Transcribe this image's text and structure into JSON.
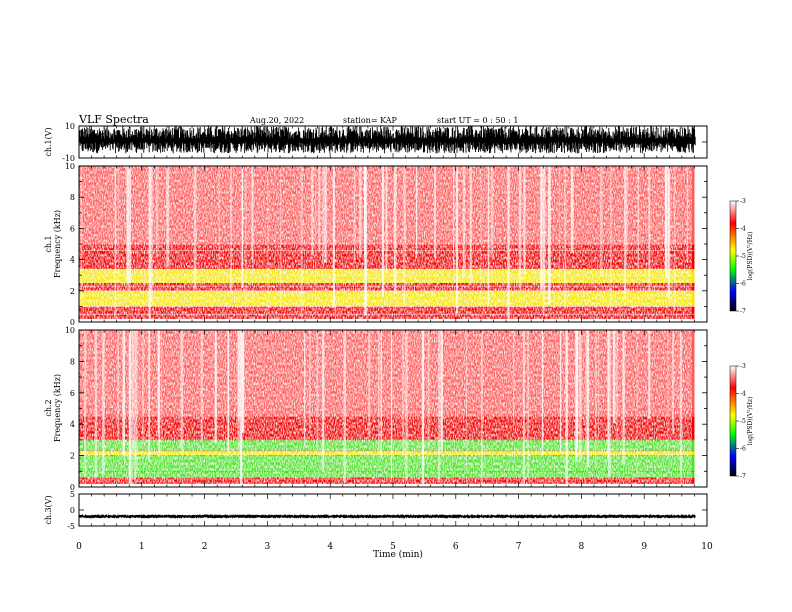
{
  "header": {
    "title": "VLF Spectra",
    "date": "Aug.20, 2022",
    "station": "station= KAP",
    "start": "start  UT =   0 : 50 : 1"
  },
  "colors": {
    "background": "#ffffff",
    "axis": "#000000",
    "spectrogram_base": "#ff0000",
    "colormap": [
      "#ffffff",
      "#ff0000",
      "#ffff00",
      "#00ff00",
      "#0000ff",
      "#000000"
    ]
  },
  "chart_data": [
    {
      "type": "line",
      "name": "waveform-ch1",
      "ylabel": "ch.1(V)",
      "ylim": [
        -10,
        10
      ],
      "yticks": [
        "10",
        "-10"
      ],
      "xlim": [
        0,
        10
      ],
      "data_end_min": 9.82,
      "description_of_values": "dense noisy waveform filling approx -7 to +10 V"
    },
    {
      "type": "heatmap",
      "name": "spectrogram-ch1",
      "ylabel": "ch.1\nFrequency (kHz)",
      "ylim": [
        0,
        10
      ],
      "yticks": [
        "0",
        "2",
        "4",
        "6",
        "8",
        "10"
      ],
      "xlim": [
        0,
        10
      ],
      "bands_khz": [
        {
          "from": 0.0,
          "to": 0.2,
          "level": "white"
        },
        {
          "from": 0.2,
          "to": 1.0,
          "level": "red"
        },
        {
          "from": 1.0,
          "to": 2.0,
          "level": "yellow"
        },
        {
          "from": 2.0,
          "to": 2.5,
          "level": "red"
        },
        {
          "from": 2.5,
          "to": 3.4,
          "level": "yellow"
        },
        {
          "from": 3.4,
          "to": 5.0,
          "level": "red"
        },
        {
          "from": 5.0,
          "to": 10.0,
          "level": "light-red"
        }
      ],
      "colorbar": {
        "label": "log(PSD)(V²/Hz)",
        "ticks": [
          "-3",
          "-4",
          "-5",
          "-6",
          "-7"
        ],
        "range": [
          -7,
          -3
        ]
      }
    },
    {
      "type": "heatmap",
      "name": "spectrogram-ch2",
      "ylabel": "ch.2\nFrequency (kHz)",
      "ylim": [
        0,
        10
      ],
      "yticks": [
        "0",
        "2",
        "4",
        "6",
        "8",
        "10"
      ],
      "xlim": [
        0,
        10
      ],
      "bands_khz": [
        {
          "from": 0.0,
          "to": 0.2,
          "level": "white"
        },
        {
          "from": 0.2,
          "to": 0.6,
          "level": "red"
        },
        {
          "from": 0.6,
          "to": 2.0,
          "level": "green"
        },
        {
          "from": 2.0,
          "to": 2.3,
          "level": "yellow"
        },
        {
          "from": 2.3,
          "to": 3.0,
          "level": "green"
        },
        {
          "from": 3.0,
          "to": 4.5,
          "level": "red"
        },
        {
          "from": 4.5,
          "to": 10.0,
          "level": "light-red"
        }
      ],
      "colorbar": {
        "label": "log(PSD)(V²/Hz)",
        "ticks": [
          "-3",
          "-4",
          "-5",
          "-6",
          "-7"
        ],
        "range": [
          -7,
          -3
        ]
      }
    },
    {
      "type": "line",
      "name": "waveform-ch3",
      "ylabel": "ch.3(V)",
      "ylim": [
        -5,
        5
      ],
      "yticks": [
        "5",
        "0",
        "-5"
      ],
      "xlim": [
        0,
        10
      ],
      "xticks": [
        "0",
        "1",
        "2",
        "3",
        "4",
        "5",
        "6",
        "7",
        "8",
        "9",
        "10"
      ],
      "xlabel": "Time (min)",
      "data_end_min": 9.82,
      "description_of_values": "dense narrow band near -2 V"
    }
  ]
}
